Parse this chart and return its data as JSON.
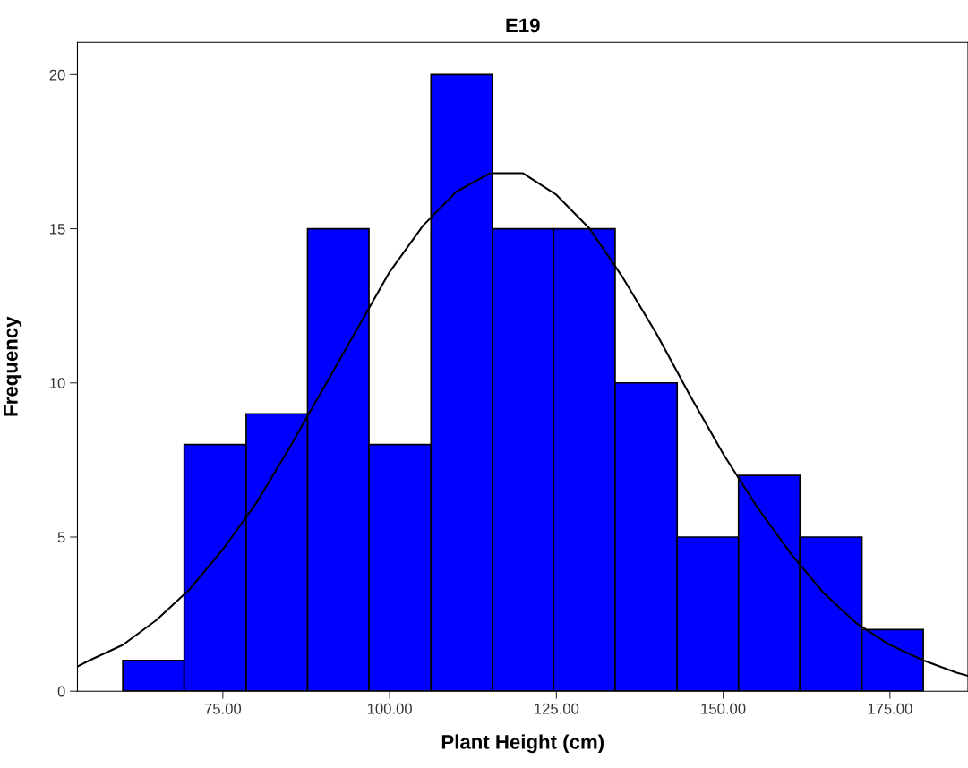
{
  "chart_data": {
    "type": "histogram",
    "title": "E19",
    "xlabel": "Plant Height (cm)",
    "ylabel": "Frequency",
    "bins": [
      60,
      69.2,
      78.5,
      87.7,
      96.9,
      106.2,
      115.4,
      124.6,
      133.8,
      143.1,
      152.3,
      161.5,
      170.8,
      180
    ],
    "values": [
      1,
      8,
      9,
      15,
      8,
      20,
      15,
      15,
      10,
      5,
      7,
      5,
      2
    ],
    "color": "#0000ff",
    "series": [
      {
        "type": "line",
        "color": "#000000",
        "x": [
          53.2,
          55,
          60,
          65,
          70,
          75,
          80,
          85,
          90,
          95,
          100,
          105,
          110,
          115,
          120,
          125,
          130,
          135,
          140,
          145,
          150,
          155,
          160,
          165,
          170,
          175,
          180,
          185,
          186.7
        ],
        "values": [
          0.8,
          1.0,
          1.5,
          2.3,
          3.3,
          4.6,
          6.1,
          7.9,
          9.8,
          11.7,
          13.6,
          15.1,
          16.2,
          16.8,
          16.8,
          16.1,
          15.0,
          13.4,
          11.6,
          9.6,
          7.7,
          6.0,
          4.5,
          3.2,
          2.2,
          1.5,
          1.0,
          0.6,
          0.5
        ]
      }
    ],
    "xlim": [
      53.2,
      186.7
    ],
    "ylim": [
      0,
      21.05
    ],
    "xticks": [
      {
        "value": 75,
        "label": "75.00"
      },
      {
        "value": 100,
        "label": "100.00"
      },
      {
        "value": 125,
        "label": "125.00"
      },
      {
        "value": 150,
        "label": "150.00"
      },
      {
        "value": 175,
        "label": "175.00"
      }
    ],
    "yticks": [
      0,
      5,
      10,
      15,
      20
    ],
    "grid": false,
    "legend": false
  }
}
